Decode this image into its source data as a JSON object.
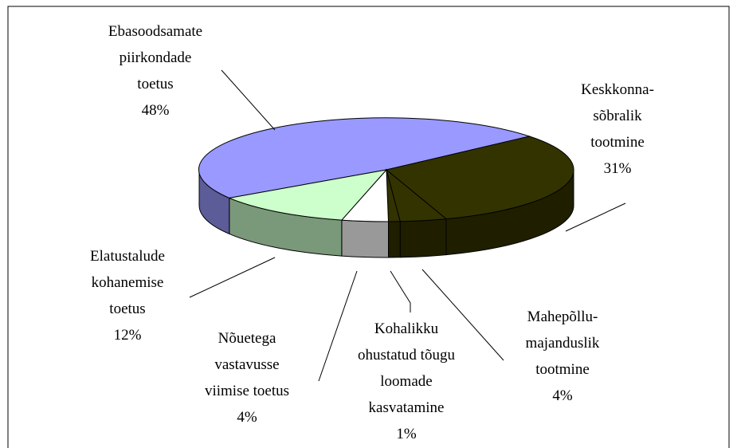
{
  "chart_data": {
    "type": "pie3d",
    "categories": [
      [
        "Ebasoodsamate",
        "piirkondade",
        "toetus"
      ],
      [
        "Keskkonna-",
        "sõbralik",
        "tootmine"
      ],
      [
        "Mahepõllu-",
        "majanduslik",
        "tootmine"
      ],
      [
        "Kohalikku",
        "ohustatud tõugu",
        "loomade",
        "kasvatamine"
      ],
      [
        "Nõuetega",
        "vastavusse",
        "viimise toetus"
      ],
      [
        "Elatustalude",
        "kohanemise",
        "toetus"
      ]
    ],
    "values": [
      48,
      31,
      4,
      1,
      4,
      12
    ],
    "value_labels": [
      "48%",
      "31%",
      "4%",
      "1%",
      "4%",
      "12%"
    ],
    "colors": [
      "#9999ff",
      "#333300",
      "#333300",
      "#333300",
      "#ffffff",
      "#ccffcc"
    ]
  }
}
